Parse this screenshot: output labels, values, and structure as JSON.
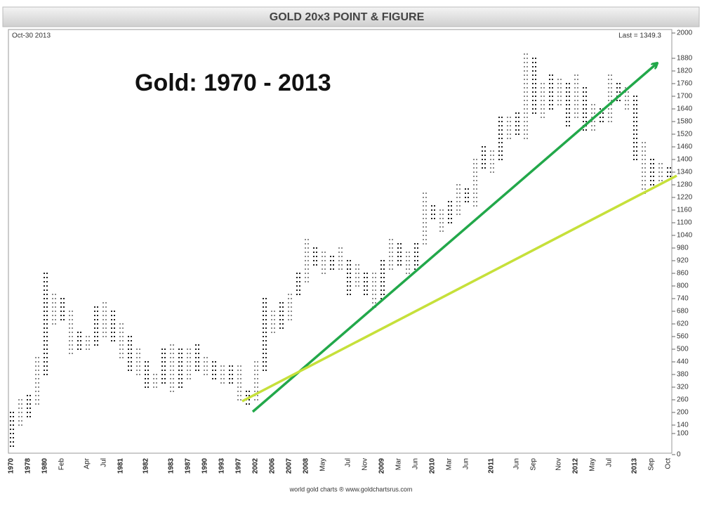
{
  "chart_data": {
    "type": "point-and-figure",
    "title": "GOLD 20x3 POINT & FIGURE",
    "date_label": "Oct-30  2013",
    "last_label": "Last = 1349.3",
    "annotation": "Gold:  1970 - 2013",
    "footer": "world gold charts ® www.goldchartsrus.com",
    "box_size": 20,
    "colors": [
      "#222222",
      "#8a8a8a"
    ],
    "categories": [
      "1970",
      null,
      "1978",
      null,
      "1980",
      null,
      "Feb",
      null,
      null,
      "Apr",
      null,
      "Jul",
      null,
      "1981",
      null,
      null,
      "1982",
      null,
      null,
      "1983",
      null,
      "1987",
      null,
      "1990",
      null,
      "1993",
      null,
      "1997",
      null,
      "2002",
      null,
      "2006",
      null,
      "2007",
      null,
      "2008",
      null,
      "May",
      null,
      null,
      "Jul",
      null,
      "Nov",
      null,
      "2009",
      null,
      "Mar",
      null,
      "Jun",
      null,
      "2010",
      null,
      "Mar",
      null,
      "Jun",
      null,
      null,
      "2011",
      null,
      null,
      "Jun",
      null,
      "Sep",
      null,
      null,
      "Nov",
      null,
      "2012",
      null,
      "May",
      null,
      "Jul",
      null,
      null,
      "2013",
      null,
      "Sep",
      null,
      "Oct"
    ],
    "lows": [
      40,
      140,
      180,
      240,
      380,
      620,
      640,
      480,
      500,
      500,
      520,
      560,
      540,
      460,
      400,
      380,
      320,
      320,
      340,
      300,
      320,
      360,
      400,
      380,
      360,
      340,
      340,
      260,
      240,
      260,
      400,
      580,
      600,
      640,
      760,
      820,
      900,
      860,
      880,
      880,
      760,
      800,
      760,
      700,
      740,
      880,
      900,
      860,
      880,
      1000,
      1120,
      1060,
      1100,
      1140,
      1200,
      1180,
      1360,
      1340,
      1400,
      1500,
      1520,
      1500,
      1620,
      1600,
      1640,
      1660,
      1560,
      1600,
      1540,
      1540,
      1580,
      1580,
      1680,
      1640,
      1400,
      1240,
      1280,
      1300,
      1320
    ],
    "highs": [
      200,
      260,
      280,
      460,
      860,
      760,
      740,
      680,
      580,
      560,
      700,
      720,
      680,
      620,
      560,
      500,
      440,
      380,
      500,
      520,
      500,
      500,
      520,
      460,
      440,
      420,
      420,
      420,
      300,
      440,
      740,
      680,
      720,
      760,
      860,
      1020,
      980,
      960,
      940,
      980,
      920,
      900,
      860,
      860,
      920,
      1020,
      1000,
      960,
      1000,
      1240,
      1180,
      1160,
      1200,
      1280,
      1260,
      1400,
      1460,
      1440,
      1600,
      1600,
      1620,
      1900,
      1880,
      1760,
      1800,
      1780,
      1760,
      1800,
      1740,
      1660,
      1640,
      1800,
      1760,
      1740,
      1700,
      1480,
      1400,
      1380,
      1360
    ],
    "ylim": [
      0,
      2000
    ],
    "yticks": [
      0,
      100,
      140,
      200,
      260,
      320,
      380,
      440,
      500,
      560,
      620,
      680,
      740,
      800,
      860,
      920,
      980,
      1040,
      1100,
      1160,
      1220,
      1280,
      1340,
      1400,
      1460,
      1520,
      1580,
      1640,
      1700,
      1760,
      1820,
      1880,
      2000
    ]
  }
}
